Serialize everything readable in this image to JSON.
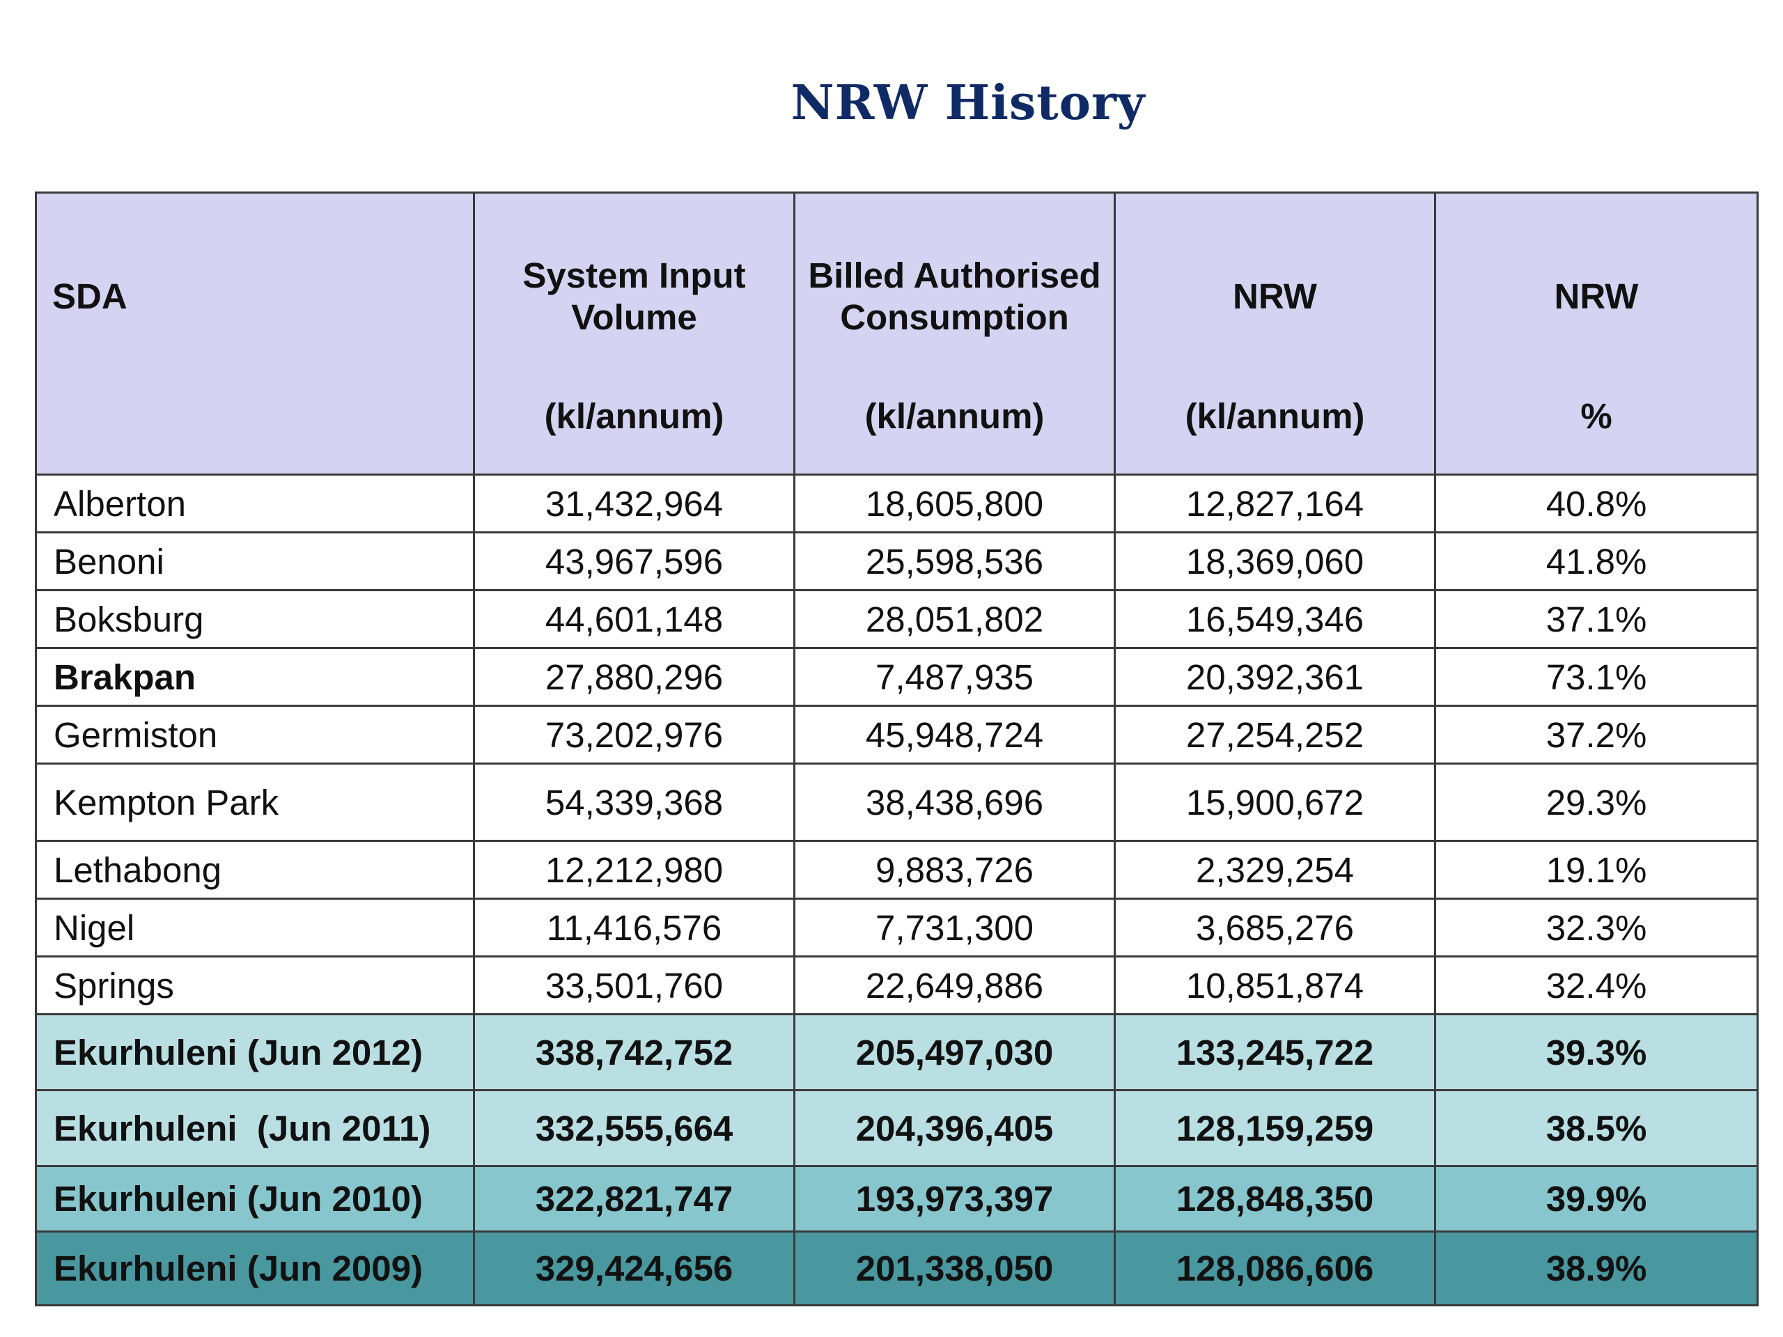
{
  "title": "NRW History",
  "columns": [
    {
      "line1": "SDA",
      "line2": ""
    },
    {
      "line1": "System Input Volume",
      "line2": "(kl/annum)"
    },
    {
      "line1": "Billed Authorised Consumption",
      "line2": "(kl/annum)"
    },
    {
      "line1": "NRW",
      "line2": "(kl/annum)"
    },
    {
      "line1": "NRW",
      "line2": "%"
    }
  ],
  "rows": [
    {
      "sda": "Alberton",
      "siv": "31,432,964",
      "bac": "18,605,800",
      "nrw": "12,827,164",
      "pct": "40.8%"
    },
    {
      "sda": "Benoni",
      "siv": "43,967,596",
      "bac": "25,598,536",
      "nrw": "18,369,060",
      "pct": "41.8%"
    },
    {
      "sda": "Boksburg",
      "siv": "44,601,148",
      "bac": "28,051,802",
      "nrw": "16,549,346",
      "pct": "37.1%"
    },
    {
      "sda": "Brakpan",
      "siv": "27,880,296",
      "bac": "7,487,935",
      "nrw": "20,392,361",
      "pct": "73.1%"
    },
    {
      "sda": "Germiston",
      "siv": "73,202,976",
      "bac": "45,948,724",
      "nrw": "27,254,252",
      "pct": "37.2%"
    },
    {
      "sda": "Kempton Park",
      "siv": "54,339,368",
      "bac": "38,438,696",
      "nrw": "15,900,672",
      "pct": "29.3%"
    },
    {
      "sda": "Lethabong",
      "siv": "12,212,980",
      "bac": "9,883,726",
      "nrw": "2,329,254",
      "pct": "19.1%"
    },
    {
      "sda": "Nigel",
      "siv": "11,416,576",
      "bac": "7,731,300",
      "nrw": "3,685,276",
      "pct": "32.3%"
    },
    {
      "sda": "Springs",
      "siv": "33,501,760",
      "bac": "22,649,886",
      "nrw": "10,851,874",
      "pct": "32.4%"
    }
  ],
  "summary_rows": [
    {
      "sda": "Ekurhuleni (Jun 2012)",
      "siv": "338,742,752",
      "bac": "205,497,030",
      "nrw": "133,245,722",
      "pct": "39.3%"
    },
    {
      "sda": "Ekurhuleni  (Jun 2011)",
      "siv": "332,555,664",
      "bac": "204,396,405",
      "nrw": "128,159,259",
      "pct": "38.5%"
    },
    {
      "sda": "Ekurhuleni (Jun 2010)",
      "siv": "322,821,747",
      "bac": "193,973,397",
      "nrw": "128,848,350",
      "pct": "39.9%"
    },
    {
      "sda": "Ekurhuleni (Jun 2009)",
      "siv": "329,424,656",
      "bac": "201,338,050",
      "nrw": "128,086,606",
      "pct": "38.9%"
    }
  ],
  "colors": {
    "title": "#102a66",
    "header_bg": "#d4d3f1",
    "summary_2012": "#badfe3",
    "summary_2011": "#badfe3",
    "summary_2010": "#88c6cd",
    "summary_2009": "#4a989f"
  }
}
